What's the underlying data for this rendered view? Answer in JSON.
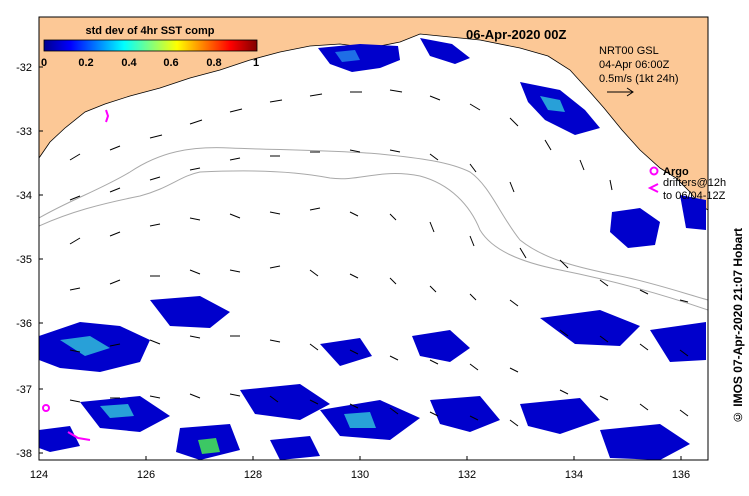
{
  "title": "06-Apr-2020 00Z",
  "colorbar": {
    "label": "std dev of 4hr SST comp",
    "ticks": [
      "0",
      "0.2",
      "0.4",
      "0.6",
      "0.8",
      "1"
    ]
  },
  "current_info": {
    "line1": "NRT00 GSL",
    "line2": "04-Apr 06:00Z",
    "line3": "0.5m/s (1kt 24h)"
  },
  "legend": {
    "argo_label": "Argo",
    "drifters_line1": "drifters@12h",
    "drifters_line2": "to 06/04-12Z"
  },
  "credit": "©  IMOS 07-Apr-2020 21:07 Hobart",
  "axes": {
    "x_ticks": [
      "124",
      "126",
      "128",
      "130",
      "132",
      "134",
      "136"
    ],
    "y_ticks": [
      "-32",
      "-33",
      "-34",
      "-35",
      "-36",
      "-37",
      "-38"
    ]
  },
  "colors": {
    "land": "#fcc896",
    "sea": "#ffffff",
    "argo": "#ff00ff",
    "bathymetry": "#a9a9a9"
  }
}
